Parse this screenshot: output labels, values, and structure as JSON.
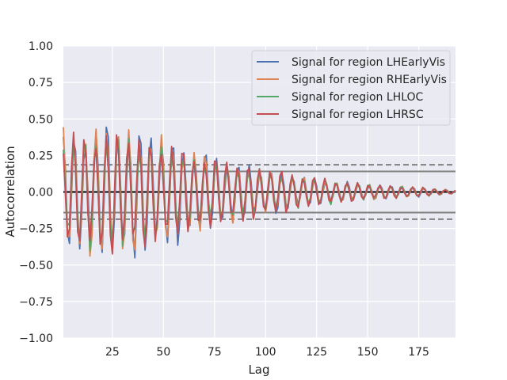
{
  "chart_data": {
    "type": "line",
    "title": "",
    "xlabel": "Lag",
    "ylabel": "Autocorrelation",
    "xlim": [
      1,
      193
    ],
    "ylim": [
      -1.0,
      1.0
    ],
    "xticks": [
      25,
      50,
      75,
      100,
      125,
      150,
      175
    ],
    "xtick_labels": [
      "25",
      "50",
      "75",
      "100",
      "125",
      "150",
      "175"
    ],
    "yticks": [
      -1.0,
      -0.75,
      -0.5,
      -0.25,
      0.0,
      0.25,
      0.5,
      0.75,
      1.0
    ],
    "ytick_labels": [
      "−1.00",
      "−0.75",
      "−0.50",
      "−0.25",
      "0.00",
      "0.25",
      "0.50",
      "0.75",
      "1.00"
    ],
    "grid": true,
    "background": "#eaeaf2",
    "legend_position": "top-right",
    "reference_lines": [
      {
        "y": 0.0,
        "style": "solid",
        "color": "#000000"
      },
      {
        "y": 0.141,
        "style": "solid",
        "color": "#808080"
      },
      {
        "y": -0.141,
        "style": "solid",
        "color": "#808080"
      },
      {
        "y": 0.186,
        "style": "dashed",
        "color": "#808080"
      },
      {
        "y": -0.186,
        "style": "dashed",
        "color": "#808080"
      }
    ],
    "period": 5.35,
    "series": [
      {
        "name": "Signal for region LHEarlyVis",
        "color": "#4c72b0",
        "envelope": [
          [
            1,
            0.34
          ],
          [
            25,
            0.43
          ],
          [
            45,
            0.38
          ],
          [
            70,
            0.25
          ],
          [
            90,
            0.17
          ],
          [
            110,
            0.12
          ],
          [
            130,
            0.07
          ],
          [
            150,
            0.05
          ],
          [
            175,
            0.03
          ],
          [
            193,
            0.01
          ]
        ],
        "phase": 0.0
      },
      {
        "name": "Signal for region RHEarlyVis",
        "color": "#dd8452",
        "envelope": [
          [
            1,
            0.38
          ],
          [
            25,
            0.42
          ],
          [
            45,
            0.35
          ],
          [
            70,
            0.24
          ],
          [
            90,
            0.16
          ],
          [
            110,
            0.11
          ],
          [
            130,
            0.07
          ],
          [
            150,
            0.05
          ],
          [
            175,
            0.03
          ],
          [
            193,
            0.01
          ]
        ],
        "phase": 0.15
      },
      {
        "name": "Signal for region LHLOC",
        "color": "#55a868",
        "envelope": [
          [
            1,
            0.32
          ],
          [
            25,
            0.38
          ],
          [
            45,
            0.3
          ],
          [
            70,
            0.2
          ],
          [
            90,
            0.15
          ],
          [
            110,
            0.11
          ],
          [
            130,
            0.08
          ],
          [
            150,
            0.05
          ],
          [
            175,
            0.03
          ],
          [
            193,
            0.01
          ]
        ],
        "phase": 0.3
      },
      {
        "name": "Signal for region LHRSC",
        "color": "#c44e52",
        "envelope": [
          [
            1,
            0.34
          ],
          [
            25,
            0.39
          ],
          [
            45,
            0.33
          ],
          [
            70,
            0.23
          ],
          [
            90,
            0.18
          ],
          [
            110,
            0.13
          ],
          [
            130,
            0.08
          ],
          [
            150,
            0.05
          ],
          [
            175,
            0.03
          ],
          [
            193,
            0.01
          ]
        ],
        "phase": 0.45
      }
    ]
  }
}
